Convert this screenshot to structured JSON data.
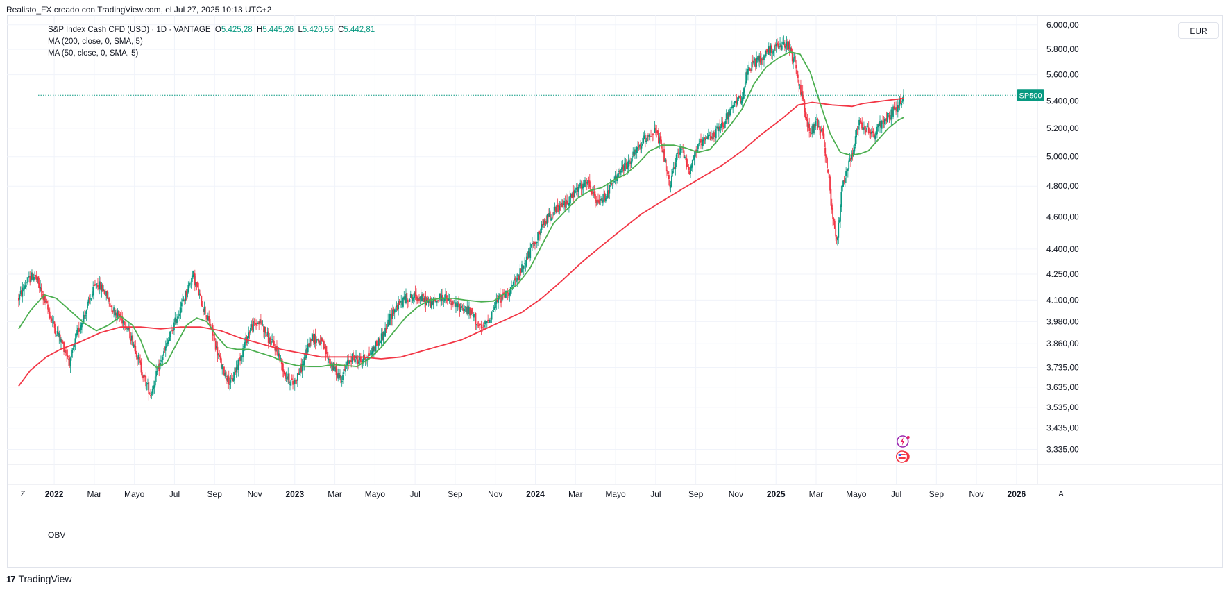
{
  "header": {
    "attribution": "Realisto_FX creado con TradingView.com, el Jul 27, 2025 10:13 UTC+2"
  },
  "legend": {
    "symbol": "S&P Index Cash CFD (USD) · 1D · VANTAGE",
    "open_label": "O",
    "open": "5.425,28",
    "high_label": "H",
    "high": "5.445,26",
    "low_label": "L",
    "low": "5.420,56",
    "close_label": "C",
    "close": "5.442,81",
    "ma200": "MA (200, close, 0, SMA, 5)",
    "ma50": "MA (50, close, 0, SMA, 5)"
  },
  "currency": "EUR",
  "price_tag": "SP500",
  "indicator_pane_label": "OBV",
  "footer": {
    "brand": "TradingView",
    "logo_mark": "17",
    "left_button": "Z",
    "right_button": "A"
  },
  "colors": {
    "up": "#089981",
    "down": "#f23645",
    "ma200": "#f23645",
    "ma50": "#4caf50",
    "price_line": "#089981",
    "grid": "#f0f3fa"
  },
  "chart_data": {
    "type": "candlestick",
    "title": "S&P Index Cash CFD (USD) · 1D · VANTAGE",
    "y_scale": "log",
    "ylim": [
      3270,
      6080
    ],
    "y_ticks": [
      6000,
      5800,
      5600,
      5400,
      5200,
      5000,
      4800,
      4600,
      4400,
      4250,
      4100,
      3980,
      3860,
      3735,
      3635,
      3535,
      3435,
      3335
    ],
    "y_tick_labels": [
      "6.000,00",
      "5.800,00",
      "5.600,00",
      "5.400,00",
      "5.200,00",
      "5.000,00",
      "4.800,00",
      "4.600,00",
      "4.400,00",
      "4.250,00",
      "4.100,00",
      "3.980,00",
      "3.860,00",
      "3.735,00",
      "3.635,00",
      "3.535,00",
      "3.435,00",
      "3.335,00"
    ],
    "x_range_months": [
      -0.8,
      48.8
    ],
    "x_ticks": [
      {
        "m": 0,
        "label": "2022",
        "bold": true
      },
      {
        "m": 2,
        "label": "Mar"
      },
      {
        "m": 4,
        "label": "Mayo"
      },
      {
        "m": 6,
        "label": "Jul"
      },
      {
        "m": 8,
        "label": "Sep"
      },
      {
        "m": 10,
        "label": "Nov"
      },
      {
        "m": 12,
        "label": "2023",
        "bold": true
      },
      {
        "m": 14,
        "label": "Mar"
      },
      {
        "m": 16,
        "label": "Mayo"
      },
      {
        "m": 18,
        "label": "Jul"
      },
      {
        "m": 20,
        "label": "Sep"
      },
      {
        "m": 22,
        "label": "Nov"
      },
      {
        "m": 24,
        "label": "2024",
        "bold": true
      },
      {
        "m": 26,
        "label": "Mar"
      },
      {
        "m": 28,
        "label": "Mayo"
      },
      {
        "m": 30,
        "label": "Jul"
      },
      {
        "m": 32,
        "label": "Sep"
      },
      {
        "m": 34,
        "label": "Nov"
      },
      {
        "m": 36,
        "label": "2025",
        "bold": true
      },
      {
        "m": 38,
        "label": "Mar"
      },
      {
        "m": 40,
        "label": "Mayo"
      },
      {
        "m": 42,
        "label": "Jul"
      },
      {
        "m": 44,
        "label": "Sep"
      },
      {
        "m": 46,
        "label": "Nov"
      },
      {
        "m": 48,
        "label": "2026",
        "bold": true
      }
    ],
    "last_price": 5442.81,
    "price_path": [
      [
        -1.08,
        4110
      ],
      [
        -0.7,
        4200
      ],
      [
        -0.3,
        4250
      ],
      [
        0.2,
        4100
      ],
      [
        0.7,
        3950
      ],
      [
        1.1,
        3860
      ],
      [
        1.5,
        3760
      ],
      [
        1.8,
        3900
      ],
      [
        2.3,
        4050
      ],
      [
        2.8,
        4200
      ],
      [
        3.2,
        4150
      ],
      [
        3.6,
        4050
      ],
      [
        4.2,
        3980
      ],
      [
        4.7,
        3850
      ],
      [
        5.1,
        3700
      ],
      [
        5.5,
        3600
      ],
      [
        5.8,
        3700
      ],
      [
        6.3,
        3850
      ],
      [
        6.8,
        4000
      ],
      [
        7.3,
        4150
      ],
      [
        7.6,
        4250
      ],
      [
        8.0,
        4100
      ],
      [
        8.5,
        3950
      ],
      [
        9.0,
        3750
      ],
      [
        9.5,
        3650
      ],
      [
        10.0,
        3800
      ],
      [
        10.5,
        3950
      ],
      [
        11.0,
        3980
      ],
      [
        11.4,
        3880
      ],
      [
        11.8,
        3830
      ],
      [
        12.2,
        3700
      ],
      [
        12.6,
        3650
      ],
      [
        13.1,
        3750
      ],
      [
        13.5,
        3900
      ],
      [
        14.0,
        3870
      ],
      [
        14.5,
        3750
      ],
      [
        15.0,
        3680
      ],
      [
        15.5,
        3790
      ],
      [
        16.0,
        3770
      ],
      [
        16.4,
        3800
      ],
      [
        16.8,
        3860
      ],
      [
        17.2,
        3930
      ],
      [
        17.6,
        4040
      ],
      [
        18.2,
        4110
      ],
      [
        18.8,
        4120
      ],
      [
        19.5,
        4080
      ],
      [
        20.1,
        4120
      ],
      [
        20.6,
        4070
      ],
      [
        21.1,
        4060
      ],
      [
        21.6,
        4010
      ],
      [
        22.0,
        3930
      ],
      [
        22.4,
        4000
      ],
      [
        22.8,
        4100
      ],
      [
        23.2,
        4130
      ],
      [
        23.7,
        4200
      ],
      [
        24.2,
        4330
      ],
      [
        24.7,
        4450
      ],
      [
        25.3,
        4600
      ],
      [
        25.8,
        4650
      ],
      [
        26.3,
        4700
      ],
      [
        26.8,
        4780
      ],
      [
        27.3,
        4820
      ],
      [
        27.8,
        4680
      ],
      [
        28.3,
        4760
      ],
      [
        28.8,
        4880
      ],
      [
        29.3,
        4950
      ],
      [
        29.8,
        5050
      ],
      [
        30.3,
        5150
      ],
      [
        30.7,
        5180
      ],
      [
        31.1,
        5000
      ],
      [
        31.4,
        4780
      ],
      [
        31.7,
        5000
      ],
      [
        32.0,
        5060
      ],
      [
        32.4,
        4900
      ],
      [
        32.7,
        5050
      ],
      [
        33.1,
        5100
      ],
      [
        33.5,
        5150
      ],
      [
        33.9,
        5200
      ],
      [
        34.3,
        5300
      ],
      [
        34.6,
        5360
      ],
      [
        35.0,
        5440
      ],
      [
        35.2,
        5580
      ],
      [
        35.5,
        5680
      ],
      [
        36.0,
        5730
      ],
      [
        36.4,
        5800
      ],
      [
        36.8,
        5820
      ],
      [
        37.3,
        5830
      ],
      [
        37.6,
        5700
      ],
      [
        37.9,
        5500
      ],
      [
        38.1,
        5350
      ],
      [
        38.4,
        5150
      ],
      [
        38.7,
        5250
      ],
      [
        39.0,
        5170
      ],
      [
        39.3,
        4900
      ],
      [
        39.5,
        4600
      ],
      [
        39.75,
        4450
      ],
      [
        40.0,
        4800
      ],
      [
        40.3,
        4950
      ],
      [
        40.55,
        5050
      ],
      [
        40.8,
        5250
      ],
      [
        41.2,
        5200
      ],
      [
        41.6,
        5150
      ],
      [
        42.0,
        5250
      ],
      [
        42.4,
        5300
      ],
      [
        42.8,
        5370
      ],
      [
        43.08,
        5442
      ]
    ],
    "series": [
      {
        "name": "MA (200, close, 0, SMA, 5)",
        "color": "#f23645",
        "points": [
          [
            -1.08,
            3640
          ],
          [
            -0.5,
            3720
          ],
          [
            0.3,
            3790
          ],
          [
            1.0,
            3830
          ],
          [
            2.0,
            3870
          ],
          [
            3.0,
            3920
          ],
          [
            4.0,
            3950
          ],
          [
            5.0,
            3950
          ],
          [
            6.0,
            3940
          ],
          [
            7.0,
            3950
          ],
          [
            8.0,
            3950
          ],
          [
            9.0,
            3930
          ],
          [
            10.0,
            3890
          ],
          [
            11.0,
            3860
          ],
          [
            12.0,
            3830
          ],
          [
            13.0,
            3810
          ],
          [
            14.0,
            3790
          ],
          [
            15.0,
            3790
          ],
          [
            16.0,
            3790
          ],
          [
            17.0,
            3780
          ],
          [
            18.0,
            3790
          ],
          [
            19.0,
            3820
          ],
          [
            20.0,
            3850
          ],
          [
            21.0,
            3880
          ],
          [
            22.0,
            3930
          ],
          [
            23.0,
            3980
          ],
          [
            24.0,
            4030
          ],
          [
            25.0,
            4110
          ],
          [
            26.0,
            4210
          ],
          [
            27.0,
            4320
          ],
          [
            28.0,
            4420
          ],
          [
            29.0,
            4520
          ],
          [
            30.0,
            4620
          ],
          [
            31.0,
            4700
          ],
          [
            32.0,
            4780
          ],
          [
            33.0,
            4860
          ],
          [
            34.0,
            4940
          ],
          [
            35.0,
            5040
          ],
          [
            36.0,
            5160
          ],
          [
            37.0,
            5270
          ],
          [
            37.8,
            5370
          ],
          [
            38.5,
            5390
          ],
          [
            39.5,
            5370
          ],
          [
            40.5,
            5360
          ],
          [
            41.0,
            5380
          ],
          [
            42.0,
            5400
          ],
          [
            43.08,
            5420
          ]
        ]
      },
      {
        "name": "MA (50, close, 0, SMA, 5)",
        "color": "#4caf50",
        "points": [
          [
            -1.08,
            3940
          ],
          [
            -0.5,
            4040
          ],
          [
            0.2,
            4130
          ],
          [
            0.8,
            4110
          ],
          [
            1.5,
            4040
          ],
          [
            2.2,
            3970
          ],
          [
            2.8,
            3930
          ],
          [
            3.4,
            3960
          ],
          [
            4.0,
            4010
          ],
          [
            4.6,
            3960
          ],
          [
            5.0,
            3880
          ],
          [
            5.4,
            3770
          ],
          [
            5.8,
            3735
          ],
          [
            6.3,
            3760
          ],
          [
            6.8,
            3860
          ],
          [
            7.3,
            3960
          ],
          [
            7.8,
            4000
          ],
          [
            8.3,
            3980
          ],
          [
            8.8,
            3900
          ],
          [
            9.3,
            3840
          ],
          [
            9.8,
            3830
          ],
          [
            10.4,
            3830
          ],
          [
            11.0,
            3810
          ],
          [
            11.6,
            3790
          ],
          [
            12.2,
            3760
          ],
          [
            12.8,
            3745
          ],
          [
            13.4,
            3740
          ],
          [
            14.0,
            3740
          ],
          [
            14.6,
            3750
          ],
          [
            15.2,
            3745
          ],
          [
            15.8,
            3740
          ],
          [
            16.4,
            3780
          ],
          [
            17.0,
            3840
          ],
          [
            17.6,
            3920
          ],
          [
            18.2,
            4000
          ],
          [
            18.8,
            4060
          ],
          [
            19.4,
            4100
          ],
          [
            20.0,
            4110
          ],
          [
            20.6,
            4110
          ],
          [
            21.2,
            4100
          ],
          [
            22.0,
            4090
          ],
          [
            22.6,
            4095
          ],
          [
            23.2,
            4140
          ],
          [
            23.8,
            4190
          ],
          [
            24.4,
            4280
          ],
          [
            25.0,
            4420
          ],
          [
            25.6,
            4560
          ],
          [
            26.2,
            4640
          ],
          [
            26.8,
            4720
          ],
          [
            27.4,
            4770
          ],
          [
            28.0,
            4790
          ],
          [
            28.6,
            4840
          ],
          [
            29.2,
            4880
          ],
          [
            29.8,
            4950
          ],
          [
            30.4,
            5040
          ],
          [
            31.0,
            5080
          ],
          [
            31.6,
            5080
          ],
          [
            32.2,
            5060
          ],
          [
            32.8,
            5030
          ],
          [
            33.4,
            5050
          ],
          [
            34.0,
            5150
          ],
          [
            34.5,
            5240
          ],
          [
            35.0,
            5340
          ],
          [
            35.6,
            5530
          ],
          [
            36.2,
            5660
          ],
          [
            36.8,
            5730
          ],
          [
            37.4,
            5780
          ],
          [
            37.9,
            5760
          ],
          [
            38.4,
            5620
          ],
          [
            38.9,
            5380
          ],
          [
            39.4,
            5160
          ],
          [
            39.9,
            5030
          ],
          [
            40.4,
            5010
          ],
          [
            40.9,
            5020
          ],
          [
            41.3,
            5040
          ],
          [
            41.8,
            5120
          ],
          [
            42.3,
            5200
          ],
          [
            42.8,
            5260
          ],
          [
            43.08,
            5280
          ]
        ]
      }
    ]
  }
}
